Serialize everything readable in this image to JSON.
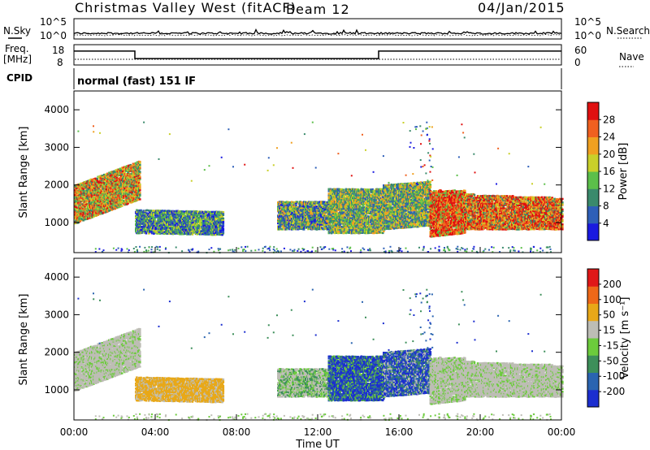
{
  "header": {
    "station": "Christmas Valley West (fitACF)",
    "beam": "Beam 12",
    "date": "04/Jan/2015"
  },
  "panels": {
    "nsky_label": "N.Sky",
    "nsearch_label": "N.Search",
    "freq_label_top": "Freq.",
    "freq_label_bottom": "[MHz]",
    "nave_label": "Nave",
    "cpid_label": "CPID",
    "cpid_value": "normal (fast) 151 IF",
    "noise_ticks_left": [
      "10^5",
      "10^0"
    ],
    "noise_ticks_right": [
      "10^5",
      "10^0"
    ],
    "freq_ticks": [
      "18",
      "8"
    ],
    "nave_ticks": [
      "60",
      "0"
    ],
    "freq_steps_hours": [
      0,
      3,
      3,
      15,
      15,
      24
    ],
    "freq_step_levels": [
      0.7,
      0.7,
      0.3,
      0.3,
      0.7,
      0.7
    ]
  },
  "chart_data": [
    {
      "type": "heatmap",
      "name": "power",
      "ylabel": "Slant Range [km]",
      "y_ticks": [
        "1000",
        "2000",
        "3000",
        "4000"
      ],
      "ylim": [
        200,
        4500
      ],
      "colorbar_label": "Power [dB]",
      "colorbar_ticks": [
        "4",
        "8",
        "12",
        "16",
        "20",
        "24",
        "28"
      ],
      "colors": [
        "#1a1ae0",
        "#2e5fb8",
        "#3a8a6c",
        "#5cbf4a",
        "#c9d02a",
        "#f0a020",
        "#f06020",
        "#e01010"
      ]
    },
    {
      "type": "heatmap",
      "name": "velocity",
      "ylabel": "Slant Range [km]",
      "y_ticks": [
        "1000",
        "2000",
        "3000",
        "4000"
      ],
      "ylim": [
        200,
        4500
      ],
      "colorbar_label": "Velocity [m s⁻¹]",
      "colorbar_ticks": [
        "200",
        "100",
        "50",
        "15",
        "-15",
        "-50",
        "-100",
        "-200"
      ],
      "colors": [
        "#1c2ecf",
        "#2a64b0",
        "#3d8f5a",
        "#6ccb3c",
        "#bdbdb5",
        "#e8a818",
        "#ee6818",
        "#e01818"
      ]
    }
  ],
  "time_axis": {
    "ticks": [
      "00:00",
      "04:00",
      "08:00",
      "12:00",
      "16:00",
      "20:00",
      "00:00"
    ],
    "label": "Time UT"
  }
}
